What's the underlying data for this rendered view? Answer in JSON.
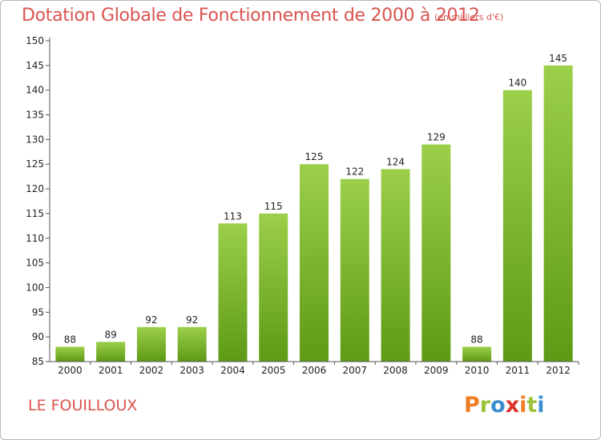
{
  "header": {
    "title": "Dotation Globale de Fonctionnement de 2000 à 2012",
    "subtitle": "(en milliers d'€)"
  },
  "footer": {
    "commune": "LE FOUILLOUX",
    "brand": "Proxiti",
    "brand_letters": [
      {
        "ch": "P",
        "color": "#ef7d22"
      },
      {
        "ch": "r",
        "color": "#9dc23b"
      },
      {
        "ch": "o",
        "color": "#3b8ed0"
      },
      {
        "ch": "x",
        "color": "#d9342b"
      },
      {
        "ch": "i",
        "color": "#ef7d22"
      },
      {
        "ch": "t",
        "color": "#9dc23b"
      },
      {
        "ch": "i",
        "color": "#3b8ed0"
      }
    ]
  },
  "colors": {
    "title": "#d9534f",
    "bar_top": "#9ccf4a",
    "bar_bottom": "#5e9a15",
    "axis": "#555555"
  },
  "chart_data": {
    "type": "bar",
    "title": "Dotation Globale de Fonctionnement de 2000 à 2012",
    "subtitle": "(en milliers d'€)",
    "categories": [
      "2000",
      "2001",
      "2002",
      "2003",
      "2004",
      "2005",
      "2006",
      "2007",
      "2008",
      "2009",
      "2010",
      "2011",
      "2012"
    ],
    "values": [
      88,
      89,
      92,
      92,
      113,
      115,
      125,
      122,
      124,
      129,
      88,
      140,
      145
    ],
    "ylim": [
      85,
      150
    ],
    "yticks": [
      85,
      90,
      95,
      100,
      105,
      110,
      115,
      120,
      125,
      130,
      135,
      140,
      145,
      150
    ],
    "grid": false,
    "legend": "none"
  }
}
